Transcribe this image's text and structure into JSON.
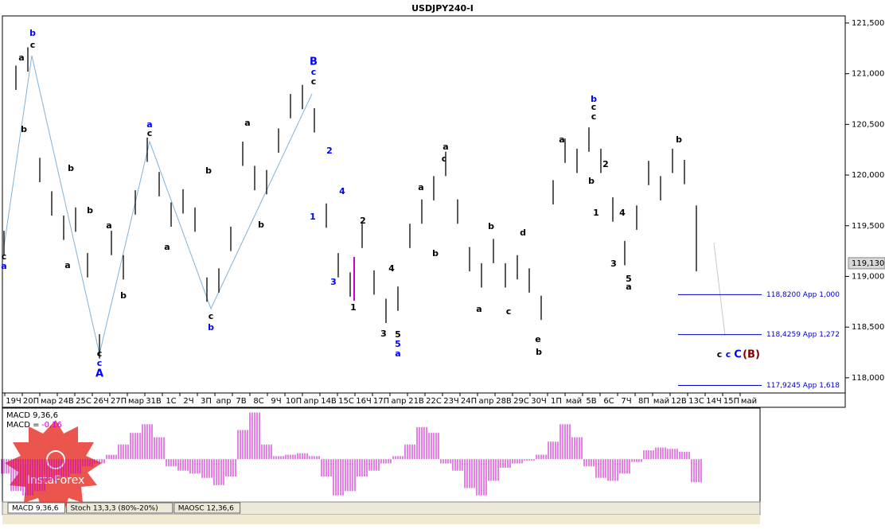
{
  "chart_data": {
    "type": "ohlc",
    "title": "USDJPY240-I",
    "ylim": [
      117.85,
      121.57
    ],
    "yticks": [
      {
        "value": 121.5,
        "label": "121,500"
      },
      {
        "value": 121.0,
        "label": "121,000"
      },
      {
        "value": 120.5,
        "label": "120,500"
      },
      {
        "value": 120.0,
        "label": "120,000"
      },
      {
        "value": 119.5,
        "label": "119,500"
      },
      {
        "value": 119.0,
        "label": "119,000"
      },
      {
        "value": 118.5,
        "label": "118,500"
      },
      {
        "value": 118.0,
        "label": "118,000"
      }
    ],
    "categories": [
      "19Ч",
      "20П",
      "мар",
      "24В",
      "25С",
      "26Ч",
      "27П",
      "мар",
      "31В",
      "1С",
      "2Ч",
      "3П",
      "апр",
      "7В",
      "8С",
      "9Ч",
      "10П",
      "апр",
      "14В",
      "15С",
      "16Ч",
      "17П",
      "апр",
      "21В",
      "22С",
      "23Ч",
      "24П",
      "апр",
      "28В",
      "29С",
      "30Ч",
      "1П",
      "май",
      "5В",
      "6С",
      "7Ч",
      "8П",
      "май",
      "12В",
      "13С",
      "14Ч",
      "15П",
      "май"
    ],
    "color": "#000000",
    "highs": [
      119.45,
      121.08,
      121.26,
      120.17,
      119.84,
      119.6,
      119.68,
      119.23,
      118.43,
      119.45,
      119.21,
      119.85,
      120.37,
      120.03,
      119.73,
      119.86,
      119.68,
      118.99,
      119.08,
      119.49,
      120.33,
      120.09,
      120.05,
      120.46,
      120.8,
      120.89,
      120.66,
      119.72,
      119.23,
      119.04,
      119.52,
      119.06,
      118.78,
      118.9,
      119.52,
      119.76,
      119.99,
      120.23,
      119.76,
      119.29,
      119.13,
      119.37,
      119.13,
      119.21,
      119.08,
      118.81,
      119.95,
      120.36,
      120.26,
      120.47,
      120.26,
      119.78,
      119.35,
      119.7,
      120.14,
      119.99,
      120.26,
      120.15,
      119.7
    ],
    "lows": [
      119.21,
      120.84,
      121.02,
      119.93,
      119.6,
      119.36,
      119.44,
      118.99,
      118.19,
      119.21,
      118.97,
      119.61,
      120.13,
      119.79,
      119.49,
      119.62,
      119.44,
      118.75,
      118.84,
      119.25,
      120.09,
      119.85,
      119.81,
      120.22,
      120.56,
      120.65,
      120.42,
      119.48,
      118.99,
      118.8,
      119.28,
      118.82,
      118.54,
      118.66,
      119.28,
      119.52,
      119.75,
      119.99,
      119.52,
      119.05,
      118.89,
      119.13,
      118.89,
      118.97,
      118.84,
      118.57,
      119.71,
      120.12,
      120.02,
      120.23,
      120.02,
      119.54,
      119.11,
      119.46,
      119.9,
      119.75,
      120.02,
      119.91,
      119.05
    ],
    "current_price": {
      "value": 119.13,
      "label": "119,130"
    },
    "levels": [
      {
        "value": 118.82,
        "label": "118,8200 App 1,000"
      },
      {
        "value": 118.4259,
        "label": "118,4259 App 1,272"
      },
      {
        "value": 117.9245,
        "label": "117,9245 App 1,618"
      }
    ],
    "level_color": "#0000cc",
    "annotations": [
      {
        "text": "c",
        "color": "#000000"
      },
      {
        "text": "a",
        "color": "#0000ff"
      },
      {
        "text": "a",
        "color": "#000000"
      },
      {
        "text": "b",
        "color": "#0000ff"
      },
      {
        "text": "c",
        "color": "#000000"
      },
      {
        "text": "b",
        "color": "#000000"
      },
      {
        "text": "b",
        "color": "#000000"
      },
      {
        "text": "a",
        "color": "#000000"
      },
      {
        "text": "c",
        "color": "#000000"
      },
      {
        "text": "c",
        "color": "#0000ff"
      },
      {
        "text": "A",
        "color": "#0000ff"
      },
      {
        "text": "b",
        "color": "#000000"
      },
      {
        "text": "a",
        "color": "#000000"
      },
      {
        "text": "b",
        "color": "#000000"
      },
      {
        "text": "a",
        "color": "#0000ff"
      },
      {
        "text": "c",
        "color": "#000000"
      },
      {
        "text": "a",
        "color": "#000000"
      },
      {
        "text": "b",
        "color": "#000000"
      },
      {
        "text": "c",
        "color": "#000000"
      },
      {
        "text": "b",
        "color": "#0000ff"
      },
      {
        "text": "a",
        "color": "#000000"
      },
      {
        "text": "b",
        "color": "#000000"
      },
      {
        "text": "B",
        "color": "#0000ff"
      },
      {
        "text": "c",
        "color": "#0000ff"
      },
      {
        "text": "c",
        "color": "#000000"
      },
      {
        "text": "2",
        "color": "#0000ff"
      },
      {
        "text": "1",
        "color": "#0000ff"
      },
      {
        "text": "4",
        "color": "#0000ff"
      },
      {
        "text": "3",
        "color": "#0000ff"
      },
      {
        "text": "1",
        "color": "#000000"
      },
      {
        "text": "2",
        "color": "#000000"
      },
      {
        "text": "3",
        "color": "#000000"
      },
      {
        "text": "4",
        "color": "#000000"
      },
      {
        "text": "5",
        "color": "#000000"
      },
      {
        "text": "5",
        "color": "#0000ff"
      },
      {
        "text": "a",
        "color": "#0000ff"
      },
      {
        "text": "a",
        "color": "#000000"
      },
      {
        "text": "a",
        "color": "#000000"
      },
      {
        "text": "c",
        "color": "#000000"
      },
      {
        "text": "b",
        "color": "#000000"
      },
      {
        "text": "b",
        "color": "#000000"
      },
      {
        "text": "a",
        "color": "#000000"
      },
      {
        "text": "c",
        "color": "#000000"
      },
      {
        "text": "d",
        "color": "#000000"
      },
      {
        "text": "e",
        "color": "#000000"
      },
      {
        "text": "b",
        "color": "#000000"
      },
      {
        "text": "a",
        "color": "#000000"
      },
      {
        "text": "b",
        "color": "#0000ff"
      },
      {
        "text": "c",
        "color": "#000000"
      },
      {
        "text": "c",
        "color": "#000000"
      },
      {
        "text": "2",
        "color": "#000000"
      },
      {
        "text": "b",
        "color": "#000000"
      },
      {
        "text": "1",
        "color": "#000000"
      },
      {
        "text": "4",
        "color": "#000000"
      },
      {
        "text": "3",
        "color": "#000000"
      },
      {
        "text": "5",
        "color": "#000000"
      },
      {
        "text": "a",
        "color": "#000000"
      },
      {
        "text": "b",
        "color": "#000000"
      },
      {
        "text": "c",
        "color": "#000000"
      },
      {
        "text": "c",
        "color": "#0000ff"
      },
      {
        "text": "C",
        "color": "#0000ff"
      },
      {
        "text": "(B)",
        "color": "#800000"
      }
    ],
    "macd": {
      "label": "MACD 9,36,6",
      "value_prefix": "MACD =",
      "current": {
        "value": -0.16,
        "label": "-0,16"
      },
      "color": "#cc00cc",
      "ylim": [
        -0.29,
        0.34
      ],
      "values": [
        -0.1,
        -0.22,
        -0.25,
        -0.22,
        -0.15,
        -0.12,
        -0.1,
        -0.05,
        -0.03,
        0.03,
        0.1,
        0.18,
        0.24,
        0.15,
        -0.05,
        -0.08,
        -0.1,
        -0.13,
        -0.18,
        -0.12,
        0.2,
        0.32,
        0.1,
        0.02,
        0.03,
        0.04,
        0.02,
        -0.12,
        -0.25,
        -0.22,
        -0.12,
        -0.08,
        -0.03,
        0.02,
        0.1,
        0.22,
        0.18,
        -0.03,
        -0.08,
        -0.2,
        -0.25,
        -0.15,
        -0.06,
        -0.03,
        -0.01,
        0.03,
        0.12,
        0.24,
        0.15,
        -0.05,
        -0.13,
        -0.15,
        -0.1,
        -0.02,
        0.06,
        0.08,
        0.07,
        0.05,
        -0.16
      ]
    },
    "tabs": [
      "MACD 9,36,6",
      "Stoch 13,3,3 (80%-20%)",
      "MAOSC 12,36,6"
    ],
    "logo": "InstaForex"
  }
}
